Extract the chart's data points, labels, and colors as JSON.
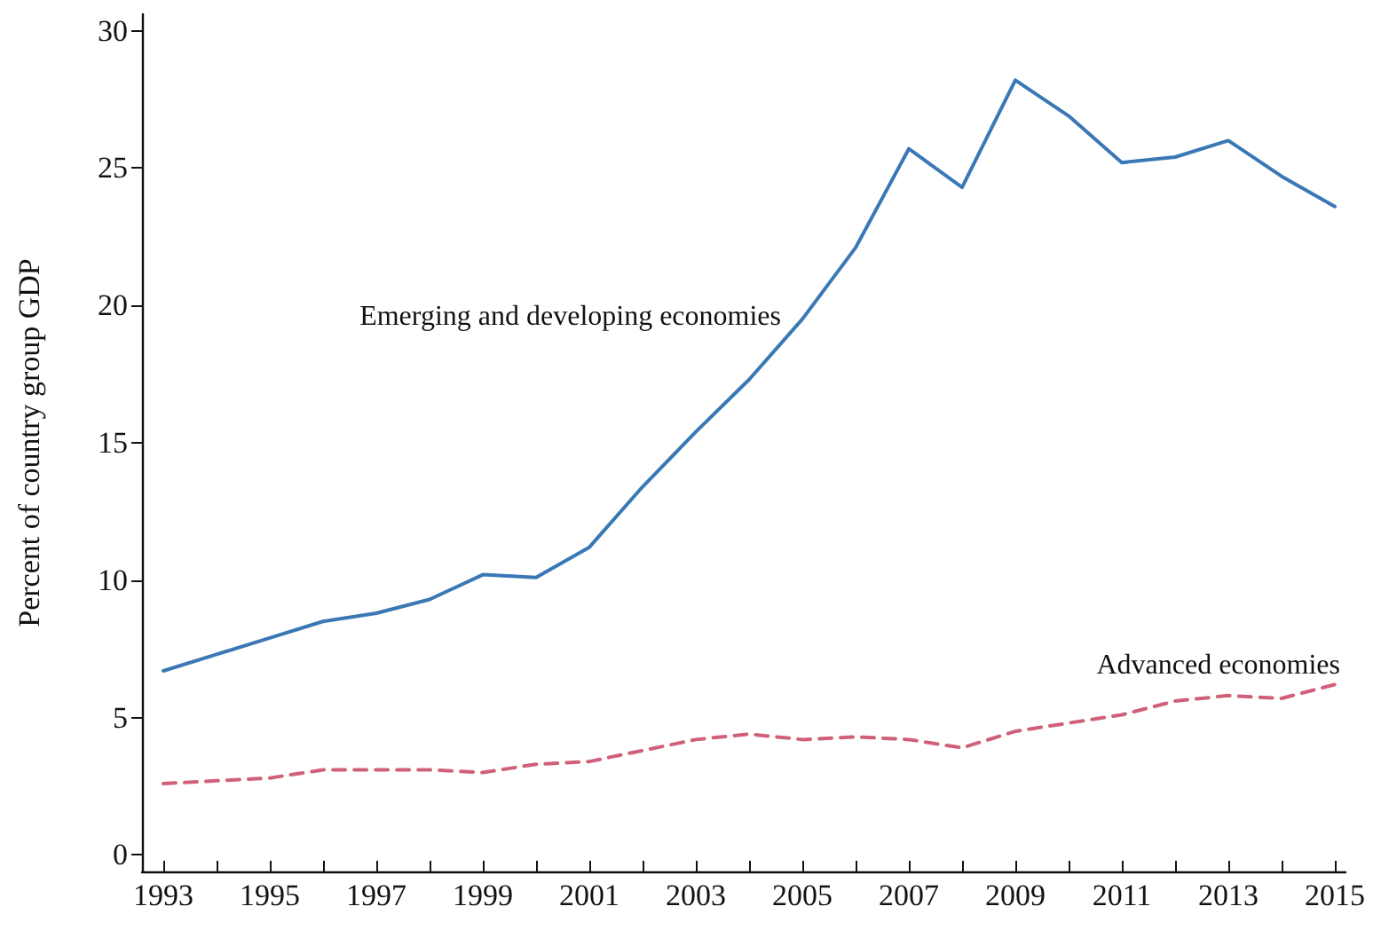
{
  "chart_data": {
    "type": "line",
    "ylabel": "Percent of country group GDP",
    "x": [
      1993,
      1994,
      1995,
      1996,
      1997,
      1998,
      1999,
      2000,
      2001,
      2002,
      2003,
      2004,
      2005,
      2006,
      2007,
      2008,
      2009,
      2010,
      2011,
      2012,
      2013,
      2014,
      2015
    ],
    "series": [
      {
        "name": "Emerging and developing economies",
        "color": "#3a78b5",
        "line_style": "solid",
        "values": [
          6.7,
          7.3,
          7.9,
          8.5,
          8.8,
          9.3,
          10.2,
          10.1,
          11.2,
          13.4,
          15.4,
          17.3,
          19.5,
          22.1,
          25.7,
          24.3,
          28.2,
          26.9,
          25.2,
          25.4,
          26.0,
          24.7,
          23.6
        ]
      },
      {
        "name": "Advanced economies",
        "color": "#d0607a",
        "line_style": "dashed",
        "values": [
          2.6,
          2.7,
          2.8,
          3.1,
          3.1,
          3.1,
          3.0,
          3.3,
          3.4,
          3.8,
          4.2,
          4.4,
          4.2,
          4.3,
          4.2,
          3.9,
          4.5,
          4.8,
          5.1,
          5.6,
          5.8,
          5.7,
          6.2
        ]
      }
    ],
    "xlim": [
      1992.6,
      2015.2
    ],
    "xticks": [
      1993,
      {
        "value": 1994,
        "label": null
      },
      1995,
      {
        "value": 1996,
        "label": null
      },
      1997,
      {
        "value": 1998,
        "label": null
      },
      1999,
      {
        "value": 2000,
        "label": null
      },
      2001,
      {
        "value": 2002,
        "label": null
      },
      2003,
      {
        "value": 2004,
        "label": null
      },
      2005,
      {
        "value": 2006,
        "label": null
      },
      2007,
      {
        "value": 2008,
        "label": null
      },
      2009,
      {
        "value": 2010,
        "label": null
      },
      2011,
      {
        "value": 2012,
        "label": null
      },
      2013,
      {
        "value": 2014,
        "label": null
      },
      2015
    ],
    "ylim": [
      -0.6,
      30.6
    ],
    "yticks": [
      0,
      5,
      10,
      15,
      20,
      25,
      30
    ],
    "grid": false,
    "legend": false,
    "marker": "none"
  }
}
